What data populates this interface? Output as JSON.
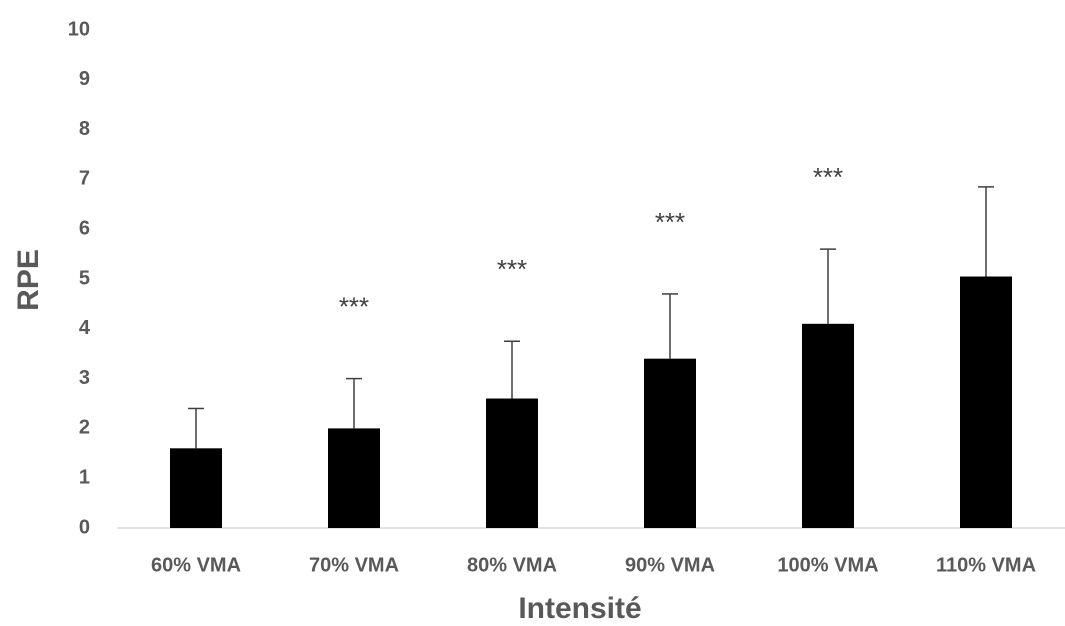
{
  "chart_data": {
    "type": "bar",
    "x_label": "Intensité",
    "y_label": "RPE",
    "categories": [
      "60% VMA",
      "70% VMA",
      "80% VMA",
      "90% VMA",
      "100% VMA",
      "110% VMA"
    ],
    "values": [
      1.6,
      2.0,
      2.6,
      3.4,
      4.1,
      5.05
    ],
    "errors": [
      0.8,
      1.0,
      1.15,
      1.3,
      1.5,
      1.8
    ],
    "significance": [
      null,
      "***",
      "***",
      "***",
      "***",
      null
    ],
    "color": "#000000",
    "ylim": [
      0,
      10
    ],
    "yticks": [
      0,
      1,
      2,
      3,
      4,
      5,
      6,
      7,
      8,
      9,
      10
    ],
    "grid": false
  }
}
